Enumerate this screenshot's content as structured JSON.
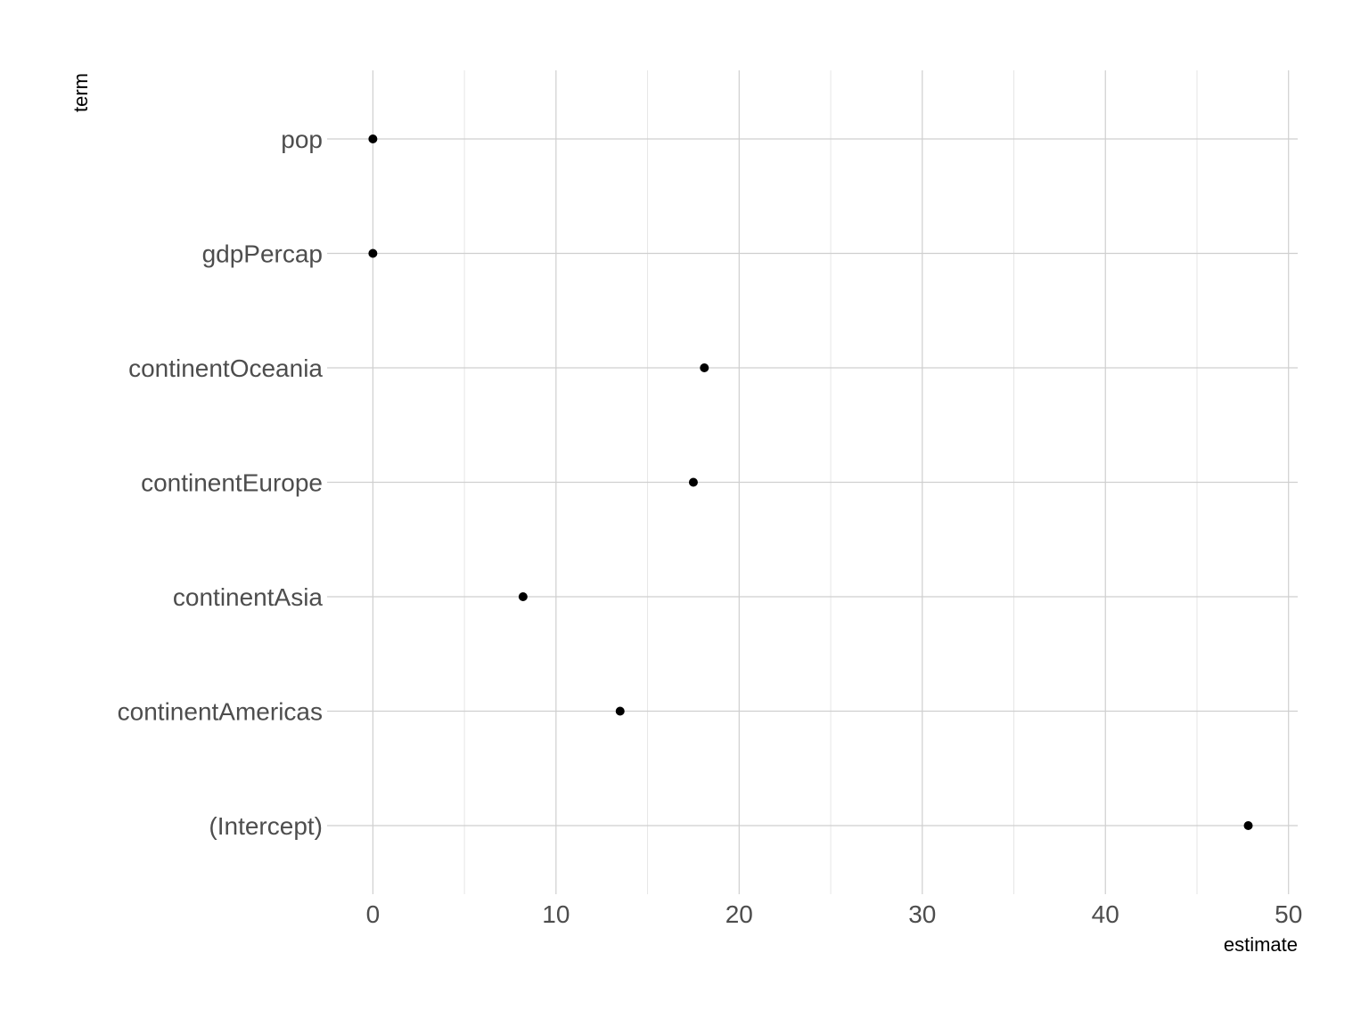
{
  "chart_data": {
    "type": "scatter",
    "xlabel": "estimate",
    "ylabel": "term",
    "xlim": [
      -2.5,
      50.5
    ],
    "x_ticks": [
      0,
      10,
      20,
      30,
      40,
      50
    ],
    "x_tick_labels": [
      "0",
      "10",
      "20",
      "30",
      "40",
      "50"
    ],
    "grid": true,
    "categories": [
      "(Intercept)",
      "continentAmericas",
      "continentAsia",
      "continentEurope",
      "continentOceania",
      "gdpPercap",
      "pop"
    ],
    "values": [
      47.8,
      13.5,
      8.2,
      17.5,
      18.1,
      0.0003,
      1e-07
    ],
    "colors": {
      "point": "#000000",
      "grid": "#cfcfcf",
      "tick_text": "#4d4d4d"
    }
  }
}
